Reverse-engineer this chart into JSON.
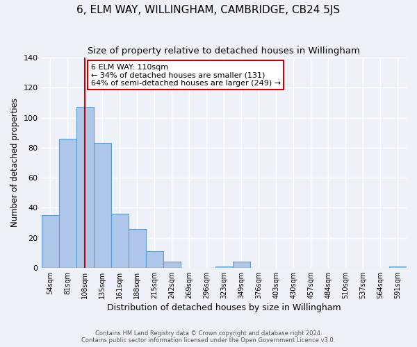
{
  "title": "6, ELM WAY, WILLINGHAM, CAMBRIDGE, CB24 5JS",
  "subtitle": "Size of property relative to detached houses in Willingham",
  "bar_labels": [
    "54sqm",
    "81sqm",
    "108sqm",
    "135sqm",
    "161sqm",
    "188sqm",
    "215sqm",
    "242sqm",
    "269sqm",
    "296sqm",
    "323sqm",
    "349sqm",
    "376sqm",
    "403sqm",
    "430sqm",
    "457sqm",
    "484sqm",
    "510sqm",
    "537sqm",
    "564sqm",
    "591sqm"
  ],
  "bar_values": [
    35,
    86,
    107,
    83,
    36,
    26,
    11,
    4,
    0,
    0,
    1,
    4,
    0,
    0,
    0,
    0,
    0,
    0,
    0,
    0,
    1
  ],
  "bar_color": "#aec6e8",
  "bar_edge_color": "#5a9fd4",
  "bar_width": 1.0,
  "vline_x": 2,
  "vline_color": "#cc0000",
  "annotation_line1": "6 ELM WAY: 110sqm",
  "annotation_line2": "← 34% of detached houses are smaller (131)",
  "annotation_line3": "64% of semi-detached houses are larger (249) →",
  "annotation_box_color": "#cc0000",
  "ylabel": "Number of detached properties",
  "xlabel": "Distribution of detached houses by size in Willingham",
  "ylim": [
    0,
    140
  ],
  "yticks": [
    0,
    20,
    40,
    60,
    80,
    100,
    120,
    140
  ],
  "footer_line1": "Contains HM Land Registry data © Crown copyright and database right 2024.",
  "footer_line2": "Contains public sector information licensed under the Open Government Licence v3.0.",
  "bg_color": "#eef2f8",
  "plot_bg_color": "#eef2f8",
  "grid_color": "#ffffff",
  "title_fontsize": 11,
  "subtitle_fontsize": 9.5,
  "xlabel_fontsize": 9,
  "ylabel_fontsize": 8.5
}
